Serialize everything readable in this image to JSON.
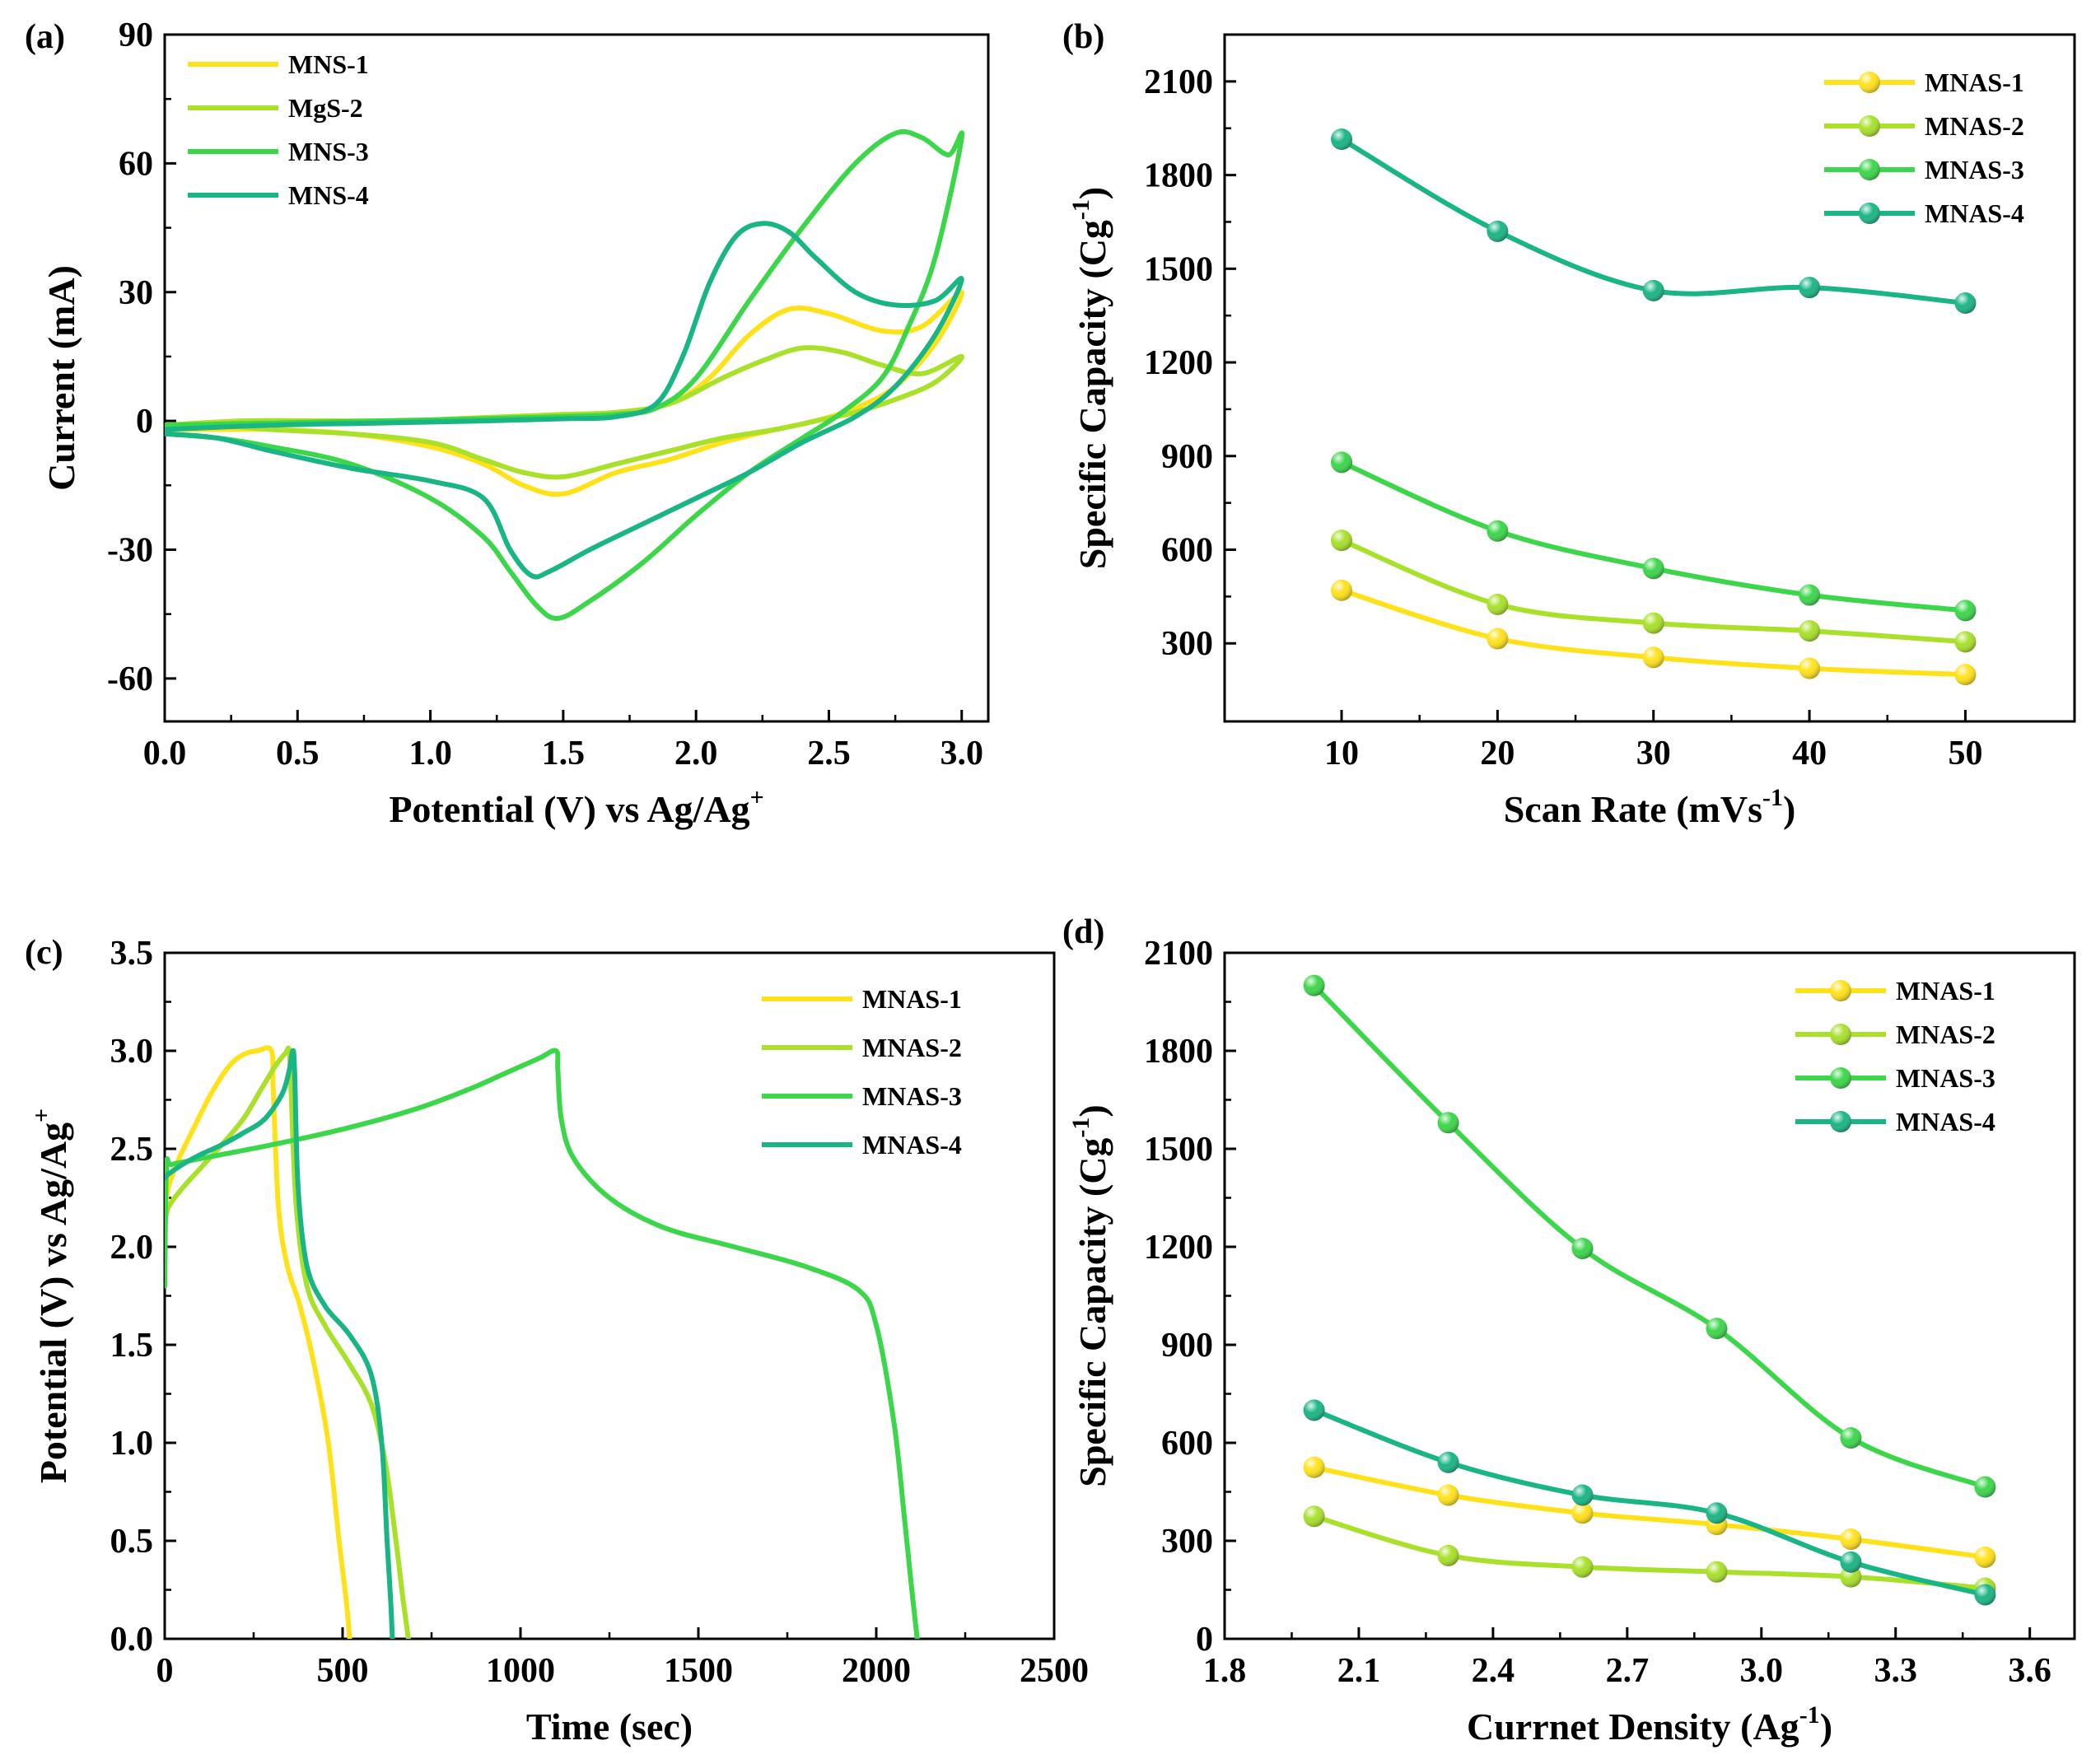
{
  "colors": {
    "c1": "#FFE11A",
    "c2": "#A8E02A",
    "c3": "#3CD64A",
    "c4": "#1AB584",
    "axis": "#000000"
  },
  "chart_data": [
    {
      "id": "a",
      "type": "line",
      "panel_label": "(a)",
      "xlabel": "Potential (V) vs Ag/Ag",
      "xlabel_sup": "+",
      "ylabel": "Current (mA)",
      "xlim": [
        0.0,
        3.1
      ],
      "ylim": [
        -70,
        90
      ],
      "xticks": [
        0.0,
        0.5,
        1.0,
        1.5,
        2.0,
        2.5,
        3.0
      ],
      "xtick_labels": [
        "0.0",
        "0.5",
        "1.0",
        "1.5",
        "2.0",
        "2.5",
        "3.0"
      ],
      "yticks": [
        -60,
        -30,
        0,
        30,
        60,
        90
      ],
      "ytick_labels": [
        "-60",
        "-30",
        "0",
        "30",
        "60",
        "90"
      ],
      "legend_position": "top-left",
      "series": [
        {
          "name": "MNS-1",
          "color_key": "c1",
          "x": [
            0.0,
            0.3,
            0.6,
            0.9,
            1.1,
            1.3,
            1.5,
            1.7,
            1.9,
            2.05,
            2.2,
            2.35,
            2.5,
            2.7,
            2.85,
            3.0,
            2.9,
            2.75,
            2.6,
            2.45,
            2.3,
            2.1,
            1.9,
            1.7,
            1.5,
            1.35,
            1.2,
            1.0,
            0.7,
            0.4,
            0.2,
            0.0
          ],
          "y": [
            -1,
            0,
            0,
            0,
            0.5,
            1,
            1.5,
            2,
            4,
            10,
            20,
            26,
            25,
            21,
            22,
            30,
            18,
            8,
            3,
            0,
            -2,
            -5,
            -9,
            -12,
            -17,
            -15,
            -10,
            -6,
            -3,
            -2,
            -2,
            -2
          ]
        },
        {
          "name": "MgS-2",
          "color_key": "c2",
          "x": [
            0.0,
            0.3,
            0.6,
            0.9,
            1.1,
            1.3,
            1.5,
            1.7,
            1.9,
            2.1,
            2.25,
            2.4,
            2.55,
            2.7,
            2.85,
            3.0,
            2.9,
            2.75,
            2.6,
            2.45,
            2.3,
            2.1,
            1.9,
            1.7,
            1.5,
            1.35,
            1.2,
            1.0,
            0.7,
            0.4,
            0.2,
            0.0
          ],
          "y": [
            -1,
            0,
            0,
            0,
            0.5,
            1,
            1.5,
            2,
            4,
            10,
            14,
            17,
            16,
            13,
            11,
            15,
            9,
            5,
            2,
            0,
            -2,
            -4,
            -7,
            -10,
            -13,
            -12,
            -9,
            -5,
            -3,
            -2,
            -1,
            -1
          ]
        },
        {
          "name": "MNS-3",
          "color_key": "c3",
          "x": [
            0.0,
            0.4,
            0.8,
            1.2,
            1.5,
            1.7,
            1.85,
            2.0,
            2.2,
            2.4,
            2.6,
            2.75,
            2.85,
            2.95,
            3.0,
            2.9,
            2.8,
            2.7,
            2.55,
            2.4,
            2.2,
            2.0,
            1.8,
            1.6,
            1.48,
            1.4,
            1.3,
            1.2,
            1.0,
            0.7,
            0.4,
            0.2,
            0.0
          ],
          "y": [
            -1,
            -0.5,
            0,
            0.5,
            1,
            1.5,
            3,
            10,
            28,
            45,
            60,
            67,
            66,
            62,
            66,
            38,
            22,
            10,
            2,
            -4,
            -12,
            -22,
            -33,
            -42,
            -46,
            -43,
            -35,
            -27,
            -18,
            -10,
            -6,
            -4,
            -3
          ]
        },
        {
          "name": "MNS-4",
          "color_key": "c4",
          "x": [
            0.0,
            0.4,
            0.8,
            1.2,
            1.5,
            1.7,
            1.85,
            1.95,
            2.05,
            2.15,
            2.25,
            2.35,
            2.45,
            2.6,
            2.75,
            2.9,
            3.0,
            2.9,
            2.75,
            2.6,
            2.4,
            2.2,
            2.0,
            1.8,
            1.6,
            1.45,
            1.38,
            1.3,
            1.2,
            1.0,
            0.7,
            0.4,
            0.2,
            0.0
          ],
          "y": [
            -2,
            -1,
            -0.5,
            0,
            0.5,
            1,
            4,
            15,
            32,
            43,
            46,
            44,
            38,
            30,
            27,
            28,
            33,
            20,
            8,
            1,
            -5,
            -12,
            -18,
            -24,
            -30,
            -35,
            -36,
            -30,
            -18,
            -14,
            -11,
            -7,
            -4,
            -3
          ]
        }
      ]
    },
    {
      "id": "b",
      "type": "line",
      "panel_label": "(b)",
      "xlabel": "Scan Rate (mVs",
      "xlabel_sup": "-1",
      "xlabel_tail": ")",
      "ylabel": "Specific Capacity (Cg",
      "ylabel_sup": "-1",
      "ylabel_tail": ")",
      "xlim": [
        2.5,
        57
      ],
      "ylim": [
        50,
        2250
      ],
      "xticks": [
        10,
        20,
        30,
        40,
        50
      ],
      "xtick_labels": [
        "10",
        "20",
        "30",
        "40",
        "50"
      ],
      "yticks": [
        300,
        600,
        900,
        1200,
        1500,
        1800,
        2100
      ],
      "ytick_labels": [
        "300",
        "600",
        "900",
        "1200",
        "1500",
        "1800",
        "2100"
      ],
      "legend_position": "top-right",
      "x": [
        10,
        20,
        30,
        40,
        50
      ],
      "series": [
        {
          "name": "MNAS-1",
          "color_key": "c1",
          "values": [
            470,
            315,
            255,
            220,
            200
          ]
        },
        {
          "name": "MNAS-2",
          "color_key": "c2",
          "values": [
            630,
            425,
            365,
            340,
            305
          ]
        },
        {
          "name": "MNAS-3",
          "color_key": "c3",
          "values": [
            880,
            660,
            540,
            455,
            405
          ]
        },
        {
          "name": "MNAS-4",
          "color_key": "c4",
          "values": [
            1915,
            1620,
            1430,
            1440,
            1390
          ]
        }
      ]
    },
    {
      "id": "c",
      "type": "line",
      "panel_label": "(c)",
      "xlabel": "Time (sec)",
      "ylabel": "Potential (V) vs Ag/Ag",
      "ylabel_sup": "+",
      "xlim": [
        0,
        2500
      ],
      "ylim": [
        0.0,
        3.5
      ],
      "xticks": [
        0,
        500,
        1000,
        1500,
        2000,
        2500
      ],
      "xtick_labels": [
        "0",
        "500",
        "1000",
        "1500",
        "2000",
        "2500"
      ],
      "yticks": [
        0.0,
        0.5,
        1.0,
        1.5,
        2.0,
        2.5,
        3.0,
        3.5
      ],
      "ytick_labels": [
        "0.0",
        "0.5",
        "1.0",
        "1.5",
        "2.0",
        "2.5",
        "3.0",
        "3.5"
      ],
      "legend_position": "top-right",
      "series": [
        {
          "name": "MNAS-1",
          "color_key": "c1",
          "x": [
            0,
            10,
            40,
            80,
            130,
            180,
            220,
            260,
            300,
            305,
            320,
            345,
            380,
            420,
            460,
            490,
            510,
            520
          ],
          "y": [
            2.15,
            2.3,
            2.45,
            2.6,
            2.78,
            2.92,
            2.98,
            3.0,
            3.0,
            2.8,
            2.2,
            1.9,
            1.7,
            1.4,
            1.0,
            0.5,
            0.2,
            0.0
          ]
        },
        {
          "name": "MNAS-2",
          "color_key": "c2",
          "x": [
            0,
            10,
            50,
            100,
            160,
            220,
            270,
            310,
            340,
            350,
            355,
            370,
            400,
            450,
            520,
            580,
            620,
            650,
            670,
            685
          ],
          "y": [
            2.1,
            2.2,
            2.3,
            2.4,
            2.52,
            2.65,
            2.8,
            2.92,
            2.99,
            3.0,
            2.8,
            2.2,
            1.8,
            1.6,
            1.4,
            1.2,
            0.9,
            0.5,
            0.2,
            0.0
          ]
        },
        {
          "name": "MNAS-3",
          "color_key": "c3",
          "x": [
            0,
            5,
            20,
            100,
            300,
            500,
            700,
            850,
            950,
            1050,
            1100,
            1105,
            1115,
            1150,
            1250,
            1400,
            1600,
            1800,
            1950,
            2000,
            2050,
            2080,
            2100,
            2115
          ],
          "y": [
            1.8,
            2.4,
            2.42,
            2.45,
            2.52,
            2.6,
            2.7,
            2.8,
            2.88,
            2.96,
            3.0,
            2.9,
            2.65,
            2.45,
            2.25,
            2.1,
            2.0,
            1.9,
            1.78,
            1.6,
            1.1,
            0.6,
            0.25,
            0.0
          ]
        },
        {
          "name": "MNAS-4",
          "color_key": "c4",
          "x": [
            0,
            10,
            50,
            100,
            160,
            220,
            280,
            330,
            350,
            360,
            365,
            375,
            400,
            450,
            520,
            580,
            610,
            625,
            635,
            640
          ],
          "y": [
            2.35,
            2.37,
            2.42,
            2.47,
            2.52,
            2.58,
            2.65,
            2.78,
            2.9,
            3.0,
            2.9,
            2.3,
            1.9,
            1.7,
            1.55,
            1.35,
            1.0,
            0.5,
            0.2,
            0.0
          ]
        }
      ]
    },
    {
      "id": "d",
      "type": "line",
      "panel_label": "(d)",
      "xlabel": "Currnet Density (Ag",
      "xlabel_sup": "-1",
      "xlabel_tail": ")",
      "ylabel": "Specific Capacity (Cg",
      "ylabel_sup": "-1",
      "ylabel_tail": ")",
      "xlim": [
        1.8,
        3.7
      ],
      "ylim": [
        0,
        2100
      ],
      "xticks": [
        1.8,
        2.1,
        2.4,
        2.7,
        3.0,
        3.3,
        3.6
      ],
      "xtick_labels": [
        "1.8",
        "2.1",
        "2.4",
        "2.7",
        "3.0",
        "3.3",
        "3.6"
      ],
      "yticks": [
        0,
        300,
        600,
        900,
        1200,
        1500,
        1800,
        2100
      ],
      "ytick_labels": [
        "0",
        "300",
        "600",
        "900",
        "1200",
        "1500",
        "1800",
        "2100"
      ],
      "legend_position": "top-right",
      "x": [
        2.0,
        2.3,
        2.6,
        2.9,
        3.2,
        3.5
      ],
      "series": [
        {
          "name": "MNAS-1",
          "color_key": "c1",
          "values": [
            525,
            440,
            385,
            350,
            305,
            250
          ]
        },
        {
          "name": "MNAS-2",
          "color_key": "c2",
          "values": [
            375,
            255,
            220,
            205,
            190,
            155
          ]
        },
        {
          "name": "MNAS-3",
          "color_key": "c3",
          "values": [
            2000,
            1580,
            1195,
            950,
            615,
            465
          ]
        },
        {
          "name": "MNAS-4",
          "color_key": "c4",
          "values": [
            700,
            540,
            440,
            385,
            235,
            135
          ]
        }
      ]
    }
  ]
}
